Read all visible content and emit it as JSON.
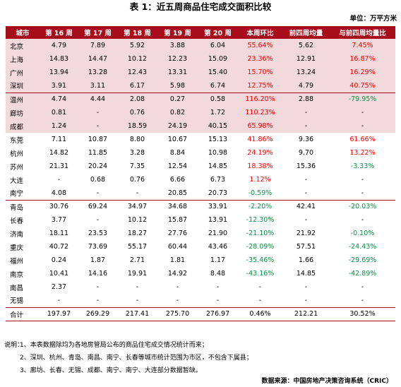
{
  "title": "表 1：近五周商品住宅成交面积比较",
  "unit": "单位：万平方米",
  "columns": [
    "城市",
    "第 16 周",
    "第 17 周",
    "第 18 周",
    "第 19 周",
    "第 20 周",
    "本周环比",
    "前四周均量",
    "与前四周均量比"
  ],
  "rows": [
    {
      "city": "北京",
      "w16": "4.79",
      "w17": "7.89",
      "w18": "5.92",
      "w19": "3.88",
      "w20": "6.04",
      "wow": "55.64%",
      "avg4": "5.62",
      "vs_avg": "7.45%"
    },
    {
      "city": "上海",
      "w16": "14.83",
      "w17": "14.47",
      "w18": "10.12",
      "w19": "12.23",
      "w20": "15.09",
      "wow": "23.36%",
      "avg4": "12.91",
      "vs_avg": "16.87%"
    },
    {
      "city": "广州",
      "w16": "13.94",
      "w17": "13.28",
      "w18": "12.43",
      "w19": "13.31",
      "w20": "15.40",
      "wow": "15.70%",
      "avg4": "13.24",
      "vs_avg": "16.29%"
    },
    {
      "city": "深圳",
      "w16": "3.91",
      "w17": "3.11",
      "w18": "6.17",
      "w19": "5.98",
      "w20": "6.74",
      "wow": "12.75%",
      "avg4": "4.79",
      "vs_avg": "40.75%"
    },
    {
      "city": "温州",
      "w16": "4.74",
      "w17": "4.44",
      "w18": "2.08",
      "w19": "0.27",
      "w20": "0.58",
      "wow": "116.20%",
      "avg4": "2.88",
      "vs_avg": "-79.95%"
    },
    {
      "city": "廊坊",
      "w16": "0.81",
      "w17": "-",
      "w18": "0.76",
      "w19": "0.82",
      "w20": "1.72",
      "wow": "110.23%",
      "avg4": "-",
      "vs_avg": "-"
    },
    {
      "city": "成都",
      "w16": "1.24",
      "w17": "-",
      "w18": "18.59",
      "w19": "24.19",
      "w20": "40.15",
      "wow": "65.98%",
      "avg4": "-",
      "vs_avg": "-"
    },
    {
      "city": "东莞",
      "w16": "7.11",
      "w17": "10.87",
      "w18": "8.80",
      "w19": "10.67",
      "w20": "15.13",
      "wow": "41.86%",
      "avg4": "9.36",
      "vs_avg": "61.66%"
    },
    {
      "city": "杭州",
      "w16": "14.82",
      "w17": "11.85",
      "w18": "3.28",
      "w19": "8.84",
      "w20": "10.98",
      "wow": "24.19%",
      "avg4": "9.70",
      "vs_avg": "13.22%"
    },
    {
      "city": "苏州",
      "w16": "21.31",
      "w17": "20.24",
      "w18": "7.35",
      "w19": "12.54",
      "w20": "14.85",
      "wow": "18.38%",
      "avg4": "15.36",
      "vs_avg": "-3.33%"
    },
    {
      "city": "大连",
      "w16": "-",
      "w17": "0.68",
      "w18": "0.76",
      "w19": "6.66",
      "w20": "6.73",
      "wow": "1.12%",
      "avg4": "-",
      "vs_avg": "-"
    },
    {
      "city": "南宁",
      "w16": "4.08",
      "w17": "-",
      "w18": "-",
      "w19": "20.85",
      "w20": "20.73",
      "wow": "-0.59%",
      "avg4": "-",
      "vs_avg": "-"
    },
    {
      "city": "青岛",
      "w16": "30.76",
      "w17": "69.24",
      "w18": "34.97",
      "w19": "34.68",
      "w20": "33.91",
      "wow": "-2.20%",
      "avg4": "42.41",
      "vs_avg": "-20.03%"
    },
    {
      "city": "长春",
      "w16": "3.77",
      "w17": "-",
      "w18": "10.12",
      "w19": "15.87",
      "w20": "13.91",
      "wow": "-12.30%",
      "avg4": "-",
      "vs_avg": "-"
    },
    {
      "city": "济南",
      "w16": "18.11",
      "w17": "23.53",
      "w18": "18.27",
      "w19": "27.76",
      "w20": "21.90",
      "wow": "-21.10%",
      "avg4": "21.92",
      "vs_avg": "-0.10%"
    },
    {
      "city": "重庆",
      "w16": "40.72",
      "w17": "73.69",
      "w18": "55.17",
      "w19": "60.44",
      "w20": "43.46",
      "wow": "-28.09%",
      "avg4": "57.51",
      "vs_avg": "-24.43%"
    },
    {
      "city": "福州",
      "w16": "0.24",
      "w17": "1.87",
      "w18": "2.71",
      "w19": "1.81",
      "w20": "1.17",
      "wow": "-35.46%",
      "avg4": "1.66",
      "vs_avg": "-29.69%"
    },
    {
      "city": "南京",
      "w16": "10.41",
      "w17": "14.16",
      "w18": "19.91",
      "w19": "14.92",
      "w20": "8.48",
      "wow": "-43.16%",
      "avg4": "14.85",
      "vs_avg": "-42.89%"
    },
    {
      "city": "南昌",
      "w16": "2.37",
      "w17": "-",
      "w18": "-",
      "w19": "-",
      "w20": "-",
      "wow": "-",
      "avg4": "-",
      "vs_avg": "-"
    },
    {
      "city": "无锡",
      "w16": "-",
      "w17": "-",
      "w18": "-",
      "w19": "-",
      "w20": "-",
      "wow": "-",
      "avg4": "-",
      "vs_avg": "-"
    }
  ],
  "total": {
    "city": "合计",
    "w16": "197.97",
    "w17": "269.29",
    "w18": "217.41",
    "w19": "275.70",
    "w20": "276.97",
    "wow": "0.46%",
    "avg4": "212.21",
    "vs_avg": "30.52%"
  },
  "notes": {
    "label": "说明：",
    "items": [
      "1、本表数据除均为各地房管局公布的商品住宅成交情况统计而来；",
      "2、深圳、杭州、青岛、南昌、南宁、长春等城市统计范围为市区，不包含下属县；",
      "3、廊坊、长春、无锡、成都、南宁、南宁、大连部分数据暂缺。"
    ]
  },
  "source": "数据来源：中国房地产决策咨询系统（CRIC）",
  "colors": {
    "header_bg": "#a80d1c",
    "pink_row": "#f2d9dc",
    "positive": "#ff0000",
    "negative": "#0b9444"
  }
}
